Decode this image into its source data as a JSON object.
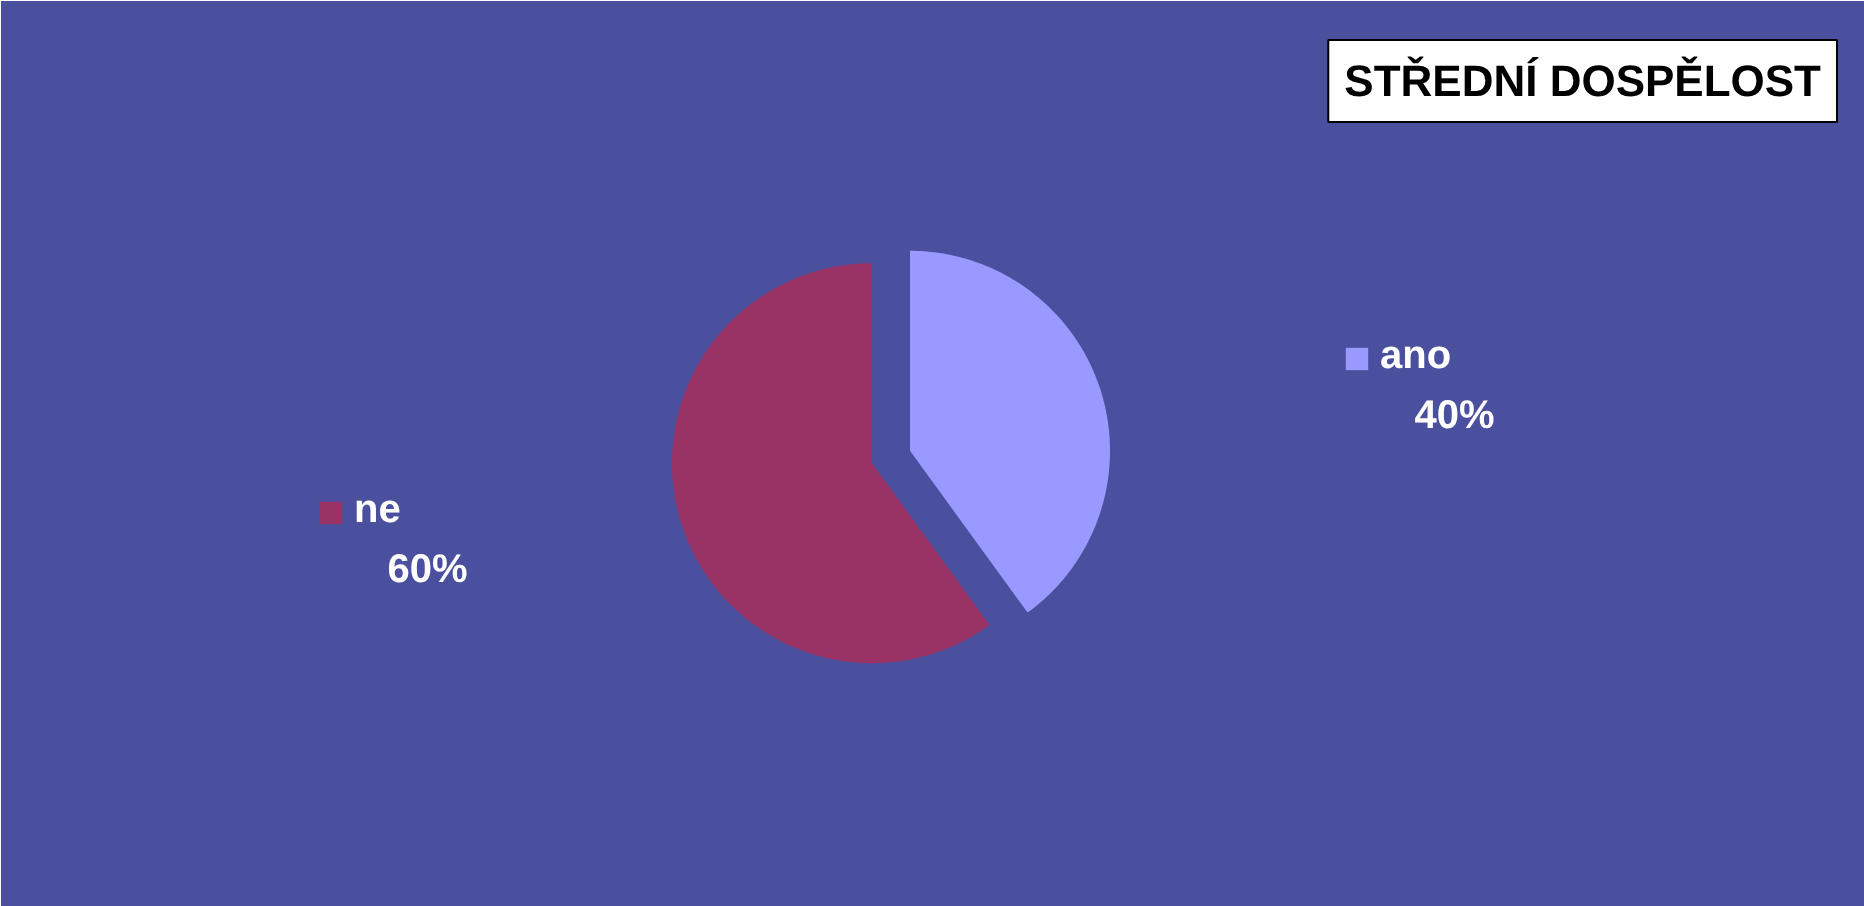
{
  "chart_data": {
    "type": "pie",
    "title": "STŘEDNÍ DOSPĚLOST",
    "categories": [
      "ano",
      "ne"
    ],
    "values": [
      40,
      60
    ],
    "colors": [
      "#9999ff",
      "#993366"
    ],
    "value_labels": [
      "40%",
      "60%"
    ],
    "legend": "right"
  }
}
